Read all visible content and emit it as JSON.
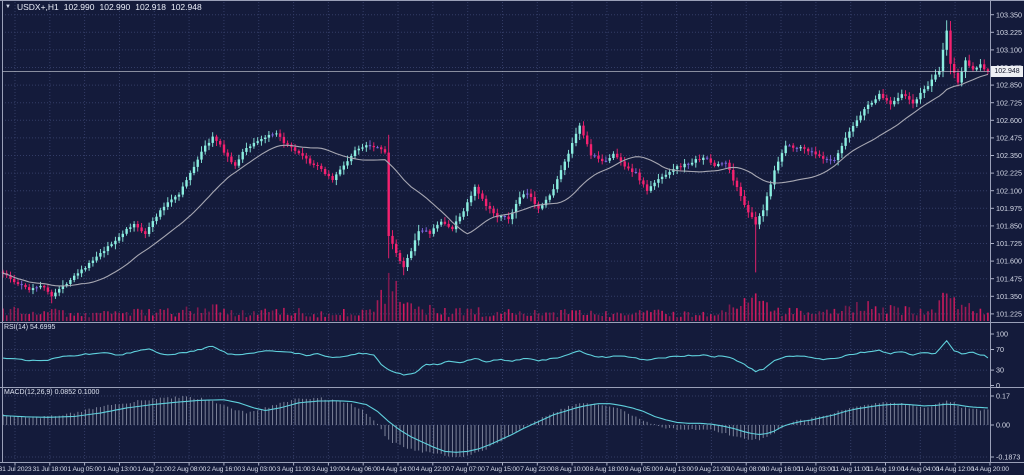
{
  "header": {
    "symbol_period": "USDX+,H1",
    "open": "102.990",
    "high": "102.990",
    "low": "102.918",
    "close": "102.948",
    "dropdown_icon": "▼"
  },
  "price_axis": {
    "current_price": "102.948"
  },
  "indicators": {
    "rsi": {
      "label": "RSI(14) 54.6995",
      "axis_ticks": [
        [
          "100",
          100
        ],
        [
          "70",
          70
        ],
        [
          "30",
          30
        ],
        [
          "0",
          0
        ]
      ],
      "levels": [
        70,
        30
      ]
    },
    "macd": {
      "label": "MACD(12,26,9) 0.0852 0.1000",
      "axis_ticks": [
        [
          "0.17",
          0.17
        ],
        [
          "0.00",
          0
        ],
        [
          "-0.1873",
          -0.1873
        ]
      ],
      "levels": [
        0.17,
        0,
        -0.1873
      ]
    }
  },
  "colors": {
    "background": "#141b3b",
    "grid": "#333c66",
    "bull": "#8beee0",
    "bear": "#f4216f",
    "doji": "#8066e0",
    "volume": "#d81b60",
    "ma_line": "#a7a7b2",
    "indicator_line": "#5fd0dc",
    "histogram": "#9aa0b4",
    "separator": "#a9afc6",
    "axis_text": "#d6dae8",
    "price_line": "#cfd3dd",
    "price_tag_bg": "#eef0f4",
    "price_tag_text": "#10152a"
  },
  "chart_data": {
    "type": "candlestick+indicators",
    "symbol": "USDX+",
    "timeframe": "H1",
    "candle_count": 264,
    "price_ticks": [
      103.35,
      103.225,
      103.1,
      102.975,
      102.85,
      102.725,
      102.6,
      102.475,
      102.35,
      102.225,
      102.1,
      101.975,
      101.85,
      101.725,
      101.6,
      101.475,
      101.35,
      101.225
    ],
    "current_price": 102.948,
    "time_labels": [
      "31 Jul 2023",
      "31 Jul 18:00",
      "1 Aug 05:00",
      "1 Aug 13:00",
      "1 Aug 21:00",
      "2 Aug 08:00",
      "2 Aug 16:00",
      "3 Aug 03:00",
      "3 Aug 11:00",
      "3 Aug 19:00",
      "4 Aug 06:00",
      "4 Aug 14:00",
      "4 Aug 22:00",
      "7 Aug 07:00",
      "7 Aug 15:00",
      "7 Aug 23:00",
      "8 Aug 10:00",
      "8 Aug 18:00",
      "9 Aug 05:00",
      "9 Aug 13:00",
      "9 Aug 21:00",
      "10 Aug 08:00",
      "10 Aug 16:00",
      "11 Aug 03:00",
      "11 Aug 11:00",
      "11 Aug 19:00",
      "14 Aug 04:00",
      "14 Aug 12:00",
      "14 Aug 20:00"
    ],
    "close_anchors": [
      [
        0,
        101.52
      ],
      [
        3,
        101.45
      ],
      [
        7,
        101.4
      ],
      [
        10,
        101.43
      ],
      [
        13,
        101.36
      ],
      [
        16,
        101.42
      ],
      [
        19,
        101.5
      ],
      [
        23,
        101.58
      ],
      [
        26,
        101.65
      ],
      [
        29,
        101.72
      ],
      [
        32,
        101.8
      ],
      [
        35,
        101.86
      ],
      [
        38,
        101.8
      ],
      [
        41,
        101.92
      ],
      [
        44,
        102.02
      ],
      [
        47,
        102.08
      ],
      [
        50,
        102.22
      ],
      [
        53,
        102.38
      ],
      [
        56,
        102.48
      ],
      [
        58,
        102.42
      ],
      [
        60,
        102.34
      ],
      [
        62,
        102.27
      ],
      [
        64,
        102.38
      ],
      [
        67,
        102.44
      ],
      [
        70,
        102.48
      ],
      [
        73,
        102.5
      ],
      [
        76,
        102.42
      ],
      [
        79,
        102.36
      ],
      [
        82,
        102.3
      ],
      [
        85,
        102.25
      ],
      [
        88,
        102.18
      ],
      [
        91,
        102.28
      ],
      [
        94,
        102.38
      ],
      [
        97,
        102.43
      ],
      [
        100,
        102.41
      ],
      [
        102,
        102.38
      ],
      [
        103,
        101.78
      ],
      [
        105,
        101.65
      ],
      [
        107,
        101.55
      ],
      [
        109,
        101.68
      ],
      [
        111,
        101.82
      ],
      [
        114,
        101.8
      ],
      [
        117,
        101.88
      ],
      [
        120,
        101.83
      ],
      [
        123,
        101.96
      ],
      [
        126,
        102.12
      ],
      [
        129,
        101.99
      ],
      [
        132,
        101.92
      ],
      [
        135,
        101.9
      ],
      [
        138,
        102.05
      ],
      [
        140,
        102.08
      ],
      [
        143,
        101.98
      ],
      [
        146,
        102.06
      ],
      [
        150,
        102.3
      ],
      [
        154,
        102.56
      ],
      [
        157,
        102.36
      ],
      [
        160,
        102.3
      ],
      [
        163,
        102.36
      ],
      [
        166,
        102.28
      ],
      [
        169,
        102.22
      ],
      [
        172,
        102.1
      ],
      [
        175,
        102.18
      ],
      [
        179,
        102.26
      ],
      [
        183,
        102.29
      ],
      [
        187,
        102.34
      ],
      [
        190,
        102.28
      ],
      [
        193,
        102.3
      ],
      [
        196,
        102.12
      ],
      [
        199,
        101.95
      ],
      [
        201,
        101.86
      ],
      [
        203,
        101.96
      ],
      [
        206,
        102.25
      ],
      [
        209,
        102.42
      ],
      [
        212,
        102.41
      ],
      [
        216,
        102.38
      ],
      [
        219,
        102.32
      ],
      [
        222,
        102.31
      ],
      [
        226,
        102.52
      ],
      [
        230,
        102.68
      ],
      [
        234,
        102.78
      ],
      [
        237,
        102.72
      ],
      [
        240,
        102.79
      ],
      [
        243,
        102.72
      ],
      [
        246,
        102.82
      ],
      [
        248,
        102.88
      ],
      [
        250,
        102.95
      ],
      [
        252,
        103.24
      ],
      [
        253,
        103.0
      ],
      [
        255,
        102.87
      ],
      [
        257,
        103.02
      ],
      [
        259,
        102.97
      ],
      [
        261,
        102.99
      ],
      [
        263,
        102.948
      ]
    ],
    "wick_overrides": {
      "13": {
        "low": 101.3
      },
      "103": {
        "low": 101.62
      },
      "107": {
        "low": 101.5
      },
      "201": {
        "low": 101.52
      },
      "252": {
        "high": 103.31
      }
    },
    "rsi_anchors": [
      [
        0,
        54
      ],
      [
        5,
        50
      ],
      [
        11,
        48
      ],
      [
        16,
        56
      ],
      [
        21,
        60
      ],
      [
        27,
        64
      ],
      [
        31,
        58
      ],
      [
        35,
        66
      ],
      [
        39,
        72
      ],
      [
        42,
        62
      ],
      [
        45,
        60
      ],
      [
        50,
        66
      ],
      [
        53,
        70
      ],
      [
        56,
        77
      ],
      [
        60,
        62
      ],
      [
        63,
        60
      ],
      [
        67,
        64
      ],
      [
        71,
        68
      ],
      [
        75,
        66
      ],
      [
        78,
        63
      ],
      [
        81,
        58
      ],
      [
        84,
        61
      ],
      [
        88,
        54
      ],
      [
        92,
        58
      ],
      [
        95,
        63
      ],
      [
        99,
        60
      ],
      [
        101,
        40
      ],
      [
        104,
        27
      ],
      [
        107,
        21
      ],
      [
        110,
        24
      ],
      [
        113,
        42
      ],
      [
        116,
        40
      ],
      [
        119,
        48
      ],
      [
        122,
        44
      ],
      [
        126,
        53
      ],
      [
        129,
        47
      ],
      [
        133,
        50
      ],
      [
        136,
        48
      ],
      [
        140,
        53
      ],
      [
        143,
        49
      ],
      [
        147,
        52
      ],
      [
        150,
        58
      ],
      [
        154,
        68
      ],
      [
        157,
        58
      ],
      [
        161,
        54
      ],
      [
        164,
        58
      ],
      [
        168,
        55
      ],
      [
        172,
        49
      ],
      [
        176,
        54
      ],
      [
        180,
        57
      ],
      [
        184,
        58
      ],
      [
        187,
        60
      ],
      [
        190,
        56
      ],
      [
        193,
        57
      ],
      [
        196,
        48
      ],
      [
        199,
        36
      ],
      [
        201,
        28
      ],
      [
        203,
        32
      ],
      [
        206,
        48
      ],
      [
        209,
        57
      ],
      [
        212,
        57
      ],
      [
        216,
        55
      ],
      [
        219,
        51
      ],
      [
        222,
        52
      ],
      [
        226,
        60
      ],
      [
        230,
        65
      ],
      [
        234,
        68
      ],
      [
        237,
        62
      ],
      [
        240,
        66
      ],
      [
        243,
        59
      ],
      [
        246,
        64
      ],
      [
        249,
        62
      ],
      [
        252,
        86
      ],
      [
        254,
        68
      ],
      [
        256,
        61
      ],
      [
        258,
        65
      ],
      [
        260,
        62
      ],
      [
        262,
        58
      ],
      [
        263,
        54.7
      ]
    ],
    "macd_signal_anchors": [
      [
        0,
        0.055
      ],
      [
        6,
        0.048
      ],
      [
        12,
        0.045
      ],
      [
        19,
        0.05
      ],
      [
        26,
        0.07
      ],
      [
        33,
        0.1
      ],
      [
        40,
        0.12
      ],
      [
        47,
        0.135
      ],
      [
        53,
        0.145
      ],
      [
        59,
        0.148
      ],
      [
        63,
        0.13
      ],
      [
        67,
        0.1
      ],
      [
        70,
        0.085
      ],
      [
        74,
        0.1
      ],
      [
        79,
        0.13
      ],
      [
        84,
        0.14
      ],
      [
        89,
        0.142
      ],
      [
        93,
        0.138
      ],
      [
        97,
        0.12
      ],
      [
        100,
        0.08
      ],
      [
        103,
        0.02
      ],
      [
        106,
        -0.03
      ],
      [
        109,
        -0.07
      ],
      [
        112,
        -0.1
      ],
      [
        115,
        -0.13
      ],
      [
        118,
        -0.155
      ],
      [
        121,
        -0.16
      ],
      [
        124,
        -0.155
      ],
      [
        127,
        -0.14
      ],
      [
        130,
        -0.115
      ],
      [
        133,
        -0.085
      ],
      [
        136,
        -0.055
      ],
      [
        139,
        -0.02
      ],
      [
        141,
        0.0
      ],
      [
        144,
        0.03
      ],
      [
        147,
        0.06
      ],
      [
        150,
        0.08
      ],
      [
        153,
        0.1
      ],
      [
        156,
        0.115
      ],
      [
        159,
        0.125
      ],
      [
        162,
        0.125
      ],
      [
        165,
        0.115
      ],
      [
        168,
        0.1
      ],
      [
        171,
        0.08
      ],
      [
        174,
        0.05
      ],
      [
        177,
        0.03
      ],
      [
        180,
        0.015
      ],
      [
        183,
        0.01
      ],
      [
        186,
        0.01
      ],
      [
        189,
        0.005
      ],
      [
        192,
        -0.005
      ],
      [
        195,
        -0.02
      ],
      [
        198,
        -0.04
      ],
      [
        200,
        -0.05
      ],
      [
        202,
        -0.055
      ],
      [
        204,
        -0.05
      ],
      [
        206,
        -0.035
      ],
      [
        208,
        -0.01
      ],
      [
        210,
        0.005
      ],
      [
        213,
        0.02
      ],
      [
        216,
        0.03
      ],
      [
        219,
        0.045
      ],
      [
        222,
        0.06
      ],
      [
        225,
        0.08
      ],
      [
        228,
        0.095
      ],
      [
        231,
        0.105
      ],
      [
        234,
        0.115
      ],
      [
        237,
        0.12
      ],
      [
        240,
        0.122
      ],
      [
        243,
        0.118
      ],
      [
        246,
        0.112
      ],
      [
        249,
        0.115
      ],
      [
        252,
        0.122
      ],
      [
        255,
        0.118
      ],
      [
        257,
        0.11
      ],
      [
        259,
        0.105
      ],
      [
        261,
        0.103
      ],
      [
        263,
        0.1
      ]
    ],
    "macd_main_anchors": [
      [
        0,
        0.06
      ],
      [
        5,
        0.05
      ],
      [
        10,
        0.045
      ],
      [
        16,
        0.06
      ],
      [
        23,
        0.09
      ],
      [
        30,
        0.12
      ],
      [
        37,
        0.145
      ],
      [
        43,
        0.16
      ],
      [
        49,
        0.165
      ],
      [
        54,
        0.15
      ],
      [
        58,
        0.12
      ],
      [
        62,
        0.09
      ],
      [
        65,
        0.07
      ],
      [
        69,
        0.09
      ],
      [
        73,
        0.12
      ],
      [
        77,
        0.145
      ],
      [
        81,
        0.16
      ],
      [
        85,
        0.155
      ],
      [
        89,
        0.145
      ],
      [
        92,
        0.13
      ],
      [
        95,
        0.1
      ],
      [
        98,
        0.05
      ],
      [
        100,
        0.0
      ],
      [
        102,
        -0.06
      ],
      [
        104,
        -0.1
      ],
      [
        107,
        -0.13
      ],
      [
        110,
        -0.15
      ],
      [
        113,
        -0.16
      ],
      [
        116,
        -0.17
      ],
      [
        119,
        -0.185
      ],
      [
        122,
        -0.19
      ],
      [
        125,
        -0.175
      ],
      [
        128,
        -0.15
      ],
      [
        131,
        -0.12
      ],
      [
        134,
        -0.08
      ],
      [
        137,
        -0.04
      ],
      [
        139,
        -0.01
      ],
      [
        141,
        0.01
      ],
      [
        144,
        0.04
      ],
      [
        147,
        0.07
      ],
      [
        150,
        0.1
      ],
      [
        153,
        0.12
      ],
      [
        156,
        0.13
      ],
      [
        159,
        0.125
      ],
      [
        162,
        0.11
      ],
      [
        165,
        0.09
      ],
      [
        168,
        0.06
      ],
      [
        171,
        0.03
      ],
      [
        174,
        0.0
      ],
      [
        177,
        -0.02
      ],
      [
        180,
        -0.025
      ],
      [
        183,
        -0.02
      ],
      [
        186,
        -0.025
      ],
      [
        189,
        -0.03
      ],
      [
        192,
        -0.045
      ],
      [
        195,
        -0.06
      ],
      [
        198,
        -0.08
      ],
      [
        200,
        -0.09
      ],
      [
        202,
        -0.085
      ],
      [
        204,
        -0.07
      ],
      [
        206,
        -0.045
      ],
      [
        208,
        -0.015
      ],
      [
        210,
        0.01
      ],
      [
        213,
        0.03
      ],
      [
        216,
        0.04
      ],
      [
        219,
        0.055
      ],
      [
        222,
        0.075
      ],
      [
        225,
        0.095
      ],
      [
        228,
        0.11
      ],
      [
        231,
        0.12
      ],
      [
        234,
        0.13
      ],
      [
        237,
        0.13
      ],
      [
        240,
        0.125
      ],
      [
        243,
        0.11
      ],
      [
        246,
        0.105
      ],
      [
        249,
        0.12
      ],
      [
        252,
        0.145
      ],
      [
        254,
        0.13
      ],
      [
        256,
        0.105
      ],
      [
        258,
        0.095
      ],
      [
        260,
        0.09
      ],
      [
        262,
        0.087
      ],
      [
        263,
        0.0852
      ]
    ],
    "volume_envelope": [
      [
        0,
        16
      ],
      [
        6,
        9
      ],
      [
        12,
        12
      ],
      [
        18,
        8
      ],
      [
        25,
        10
      ],
      [
        32,
        12
      ],
      [
        40,
        10
      ],
      [
        48,
        13
      ],
      [
        56,
        15
      ],
      [
        62,
        9
      ],
      [
        70,
        11
      ],
      [
        78,
        12
      ],
      [
        85,
        10
      ],
      [
        92,
        13
      ],
      [
        98,
        18
      ],
      [
        101,
        30
      ],
      [
        103,
        44
      ],
      [
        106,
        32
      ],
      [
        110,
        20
      ],
      [
        115,
        13
      ],
      [
        120,
        11
      ],
      [
        126,
        13
      ],
      [
        132,
        9
      ],
      [
        138,
        11
      ],
      [
        144,
        9
      ],
      [
        150,
        12
      ],
      [
        154,
        16
      ],
      [
        160,
        11
      ],
      [
        166,
        9
      ],
      [
        172,
        10
      ],
      [
        178,
        9
      ],
      [
        184,
        11
      ],
      [
        190,
        10
      ],
      [
        196,
        16
      ],
      [
        200,
        28
      ],
      [
        203,
        22
      ],
      [
        207,
        14
      ],
      [
        212,
        11
      ],
      [
        218,
        9
      ],
      [
        224,
        12
      ],
      [
        230,
        18
      ],
      [
        236,
        16
      ],
      [
        242,
        14
      ],
      [
        246,
        18
      ],
      [
        250,
        22
      ],
      [
        252,
        36
      ],
      [
        255,
        20
      ],
      [
        258,
        16
      ],
      [
        261,
        12
      ],
      [
        263,
        8
      ]
    ]
  }
}
